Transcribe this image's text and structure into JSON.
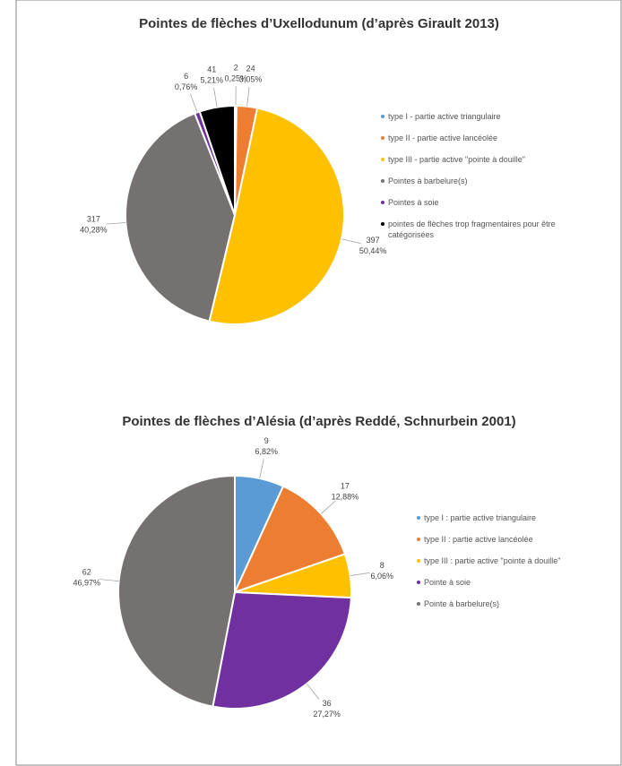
{
  "chart_data": [
    {
      "type": "pie",
      "title": "Pointes de flèches d’Uxellodunum (d’après Girault 2013)",
      "categories": [
        "type I - partie active triangulaire",
        "type II - partie active lancéolée",
        "type III - partie active \"pointe à douille\"",
        "Pointes à barbelure(s)",
        "Pointes à soie",
        "pointes de flèches trop fragmentaires pour être catégorisées"
      ],
      "values": [
        2,
        24,
        397,
        317,
        6,
        41
      ],
      "percent_labels": [
        "0,25%",
        "3,05%",
        "50,44%",
        "40,28%",
        "0,76%",
        "5,21%"
      ],
      "colors": [
        "#5b9bd5",
        "#ed7d31",
        "#ffc000",
        "#767171",
        "#7030a0",
        "#000000"
      ]
    },
    {
      "type": "pie",
      "title": "Pointes de flèches d’Alésia (d’après Reddé, Schnurbein 2001)",
      "categories": [
        "type I : partie active triangulaire",
        "type II : partie active lancéolée",
        "type III : partie active \"pointe à douille\"",
        "Pointe à soie",
        "Pointe à barbelure(s)"
      ],
      "values": [
        9,
        17,
        8,
        36,
        62
      ],
      "percent_labels": [
        "6,82%",
        "12,88%",
        "6,06%",
        "27,27%",
        "46,97%"
      ],
      "colors": [
        "#5b9bd5",
        "#ed7d31",
        "#ffc000",
        "#7030a0",
        "#767171"
      ]
    }
  ]
}
